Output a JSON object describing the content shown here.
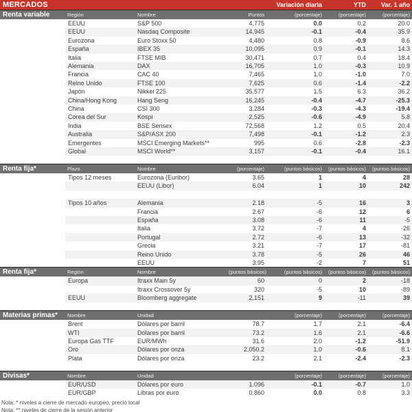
{
  "title_bar": {
    "title": "MERCADOS",
    "cols": [
      "Variación diaria",
      "YTD",
      "Var. 1 año"
    ]
  },
  "colors": {
    "red_bar": "#C8342A",
    "gray_header": "#6F6F6F",
    "negative_red": "#C00000",
    "positive_green": "#92D050",
    "row_stripe": "#F2F2F2"
  },
  "sections": [
    {
      "label": "Renta variable",
      "gap_before": false,
      "stripe": "even",
      "columns": [
        "Región",
        "Nombre",
        "Puntos",
        "(porcentaje)",
        "(porcentaje)",
        "(porcentaje)"
      ],
      "rows": [
        {
          "c1": "EEUU",
          "c2": "S&P 500",
          "val": "4,775",
          "chg": [
            "0.0",
            "0.2",
            "20.0"
          ],
          "sig": [
            "r",
            "g",
            "g"
          ]
        },
        {
          "c1": "EEUU",
          "c2": "Nasdaq Composite",
          "val": "14,945",
          "chg": [
            "-0.1",
            "-0.4",
            "35.9"
          ],
          "sig": [
            "r",
            "r",
            "g"
          ]
        },
        {
          "c1": "Eurozona",
          "c2": "Euro Stoxx 50",
          "val": "4,480",
          "chg": [
            "0.8",
            "-0.9",
            "8.6"
          ],
          "sig": [
            "g",
            "r",
            "g"
          ]
        },
        {
          "c1": "España",
          "c2": "IBEX 35",
          "val": "10,095",
          "chg": [
            "0.9",
            "-0.1",
            "14.3"
          ],
          "sig": [
            "g",
            "r",
            "g"
          ]
        },
        {
          "c1": "Italia",
          "c2": "FTSE MIB",
          "val": "30,471",
          "chg": [
            "0.7",
            "0.4",
            "18.4"
          ],
          "sig": [
            "g",
            "g",
            "g"
          ]
        },
        {
          "c1": "Alemania",
          "c2": "DAX",
          "val": "16,705",
          "chg": [
            "1.0",
            "-0.3",
            "10.9"
          ],
          "sig": [
            "g",
            "r",
            "g"
          ]
        },
        {
          "c1": "Francia",
          "c2": "CAC 40",
          "val": "7,465",
          "chg": [
            "1.0",
            "-1.0",
            "7.0"
          ],
          "sig": [
            "g",
            "r",
            "g"
          ]
        },
        {
          "c1": "Reino Unido",
          "c2": "FTSE 100",
          "val": "7,625",
          "chg": [
            "0.6",
            "-1.4",
            "-2.2"
          ],
          "sig": [
            "g",
            "r",
            "r"
          ]
        },
        {
          "c1": "Japón",
          "c2": "Nikkei 225",
          "val": "35,577",
          "chg": [
            "1.5",
            "6.3",
            "36.2"
          ],
          "sig": [
            "g",
            "g",
            "g"
          ]
        },
        {
          "c1": "China/Hong Kong",
          "c2": "Hang Seng",
          "val": "16,245",
          "chg": [
            "-0.4",
            "-4.7",
            "-25.3"
          ],
          "sig": [
            "r",
            "r",
            "r"
          ]
        },
        {
          "c1": "China",
          "c2": "CSI 300",
          "val": "3,284",
          "chg": [
            "-0.3",
            "-4.3",
            "-19.4"
          ],
          "sig": [
            "r",
            "r",
            "r"
          ]
        },
        {
          "c1": "Corea del Sur",
          "c2": "Kospi",
          "val": "2,525",
          "chg": [
            "-0.6",
            "-4.9",
            "5.8"
          ],
          "sig": [
            "r",
            "r",
            "g"
          ]
        },
        {
          "c1": "India",
          "c2": "BSE Sensex",
          "val": "72,568",
          "chg": [
            "1.2",
            "0.5",
            "20.4"
          ],
          "sig": [
            "g",
            "g",
            "g"
          ]
        },
        {
          "c1": "Australia",
          "c2": "S&P/ASX 200",
          "val": "7,498",
          "chg": [
            "-0.1",
            "-1.2",
            "2.3"
          ],
          "sig": [
            "r",
            "r",
            "g"
          ]
        },
        {
          "c1": "Emergentes",
          "c2": "MSCI Emerging Markets**",
          "val": "995",
          "chg": [
            "0.6",
            "-2.8",
            "-2.3"
          ],
          "sig": [
            "g",
            "r",
            "r"
          ]
        },
        {
          "c1": "Global",
          "c2": "MSCI World**",
          "val": "3,157",
          "chg": [
            "-0.1",
            "-0.4",
            "16.1"
          ],
          "sig": [
            "r",
            "r",
            "g"
          ]
        }
      ]
    },
    {
      "label": "Renta fija*",
      "gap_before": true,
      "stripe": "even",
      "columns": [
        "Plazo",
        "Nombre",
        "(porcentaje)",
        "(puntos básicos)",
        "(puntos básicos)",
        "(puntos básicos)"
      ],
      "rows": [
        {
          "c1": "Tipos 12 meses",
          "c2": "Eurozona (Euribor)",
          "val": "3.65",
          "chg": [
            "1",
            "4",
            "28"
          ],
          "sig": [
            "r",
            "r",
            "r"
          ]
        },
        {
          "c1": "",
          "c2": "EEUU (Libor)",
          "val": "6.04",
          "chg": [
            "1",
            "10",
            "242"
          ],
          "sig": [
            "r",
            "r",
            "r"
          ]
        },
        {
          "c1": "",
          "c2": "",
          "val": "",
          "chg": [
            "",
            "",
            ""
          ],
          "sig": [
            "",
            "",
            ""
          ]
        },
        {
          "c1": "Tipos 10 años",
          "c2": "Alemania",
          "val": "2.18",
          "chg": [
            "-5",
            "16",
            "3"
          ],
          "sig": [
            "g",
            "r",
            "r"
          ]
        },
        {
          "c1": "",
          "c2": "Francia",
          "val": "2.67",
          "chg": [
            "-6",
            "12",
            "6"
          ],
          "sig": [
            "g",
            "r",
            "r"
          ]
        },
        {
          "c1": "",
          "c2": "España",
          "val": "3.08",
          "chg": [
            "-6",
            "11",
            "-5"
          ],
          "sig": [
            "g",
            "r",
            "g"
          ]
        },
        {
          "c1": "",
          "c2": "Italia",
          "val": "3.72",
          "chg": [
            "-7",
            "4",
            "-26"
          ],
          "sig": [
            "g",
            "r",
            "g"
          ]
        },
        {
          "c1": "",
          "c2": "Portugal",
          "val": "2.72",
          "chg": [
            "-6",
            "13",
            "-32"
          ],
          "sig": [
            "g",
            "r",
            "g"
          ]
        },
        {
          "c1": "",
          "c2": "Grecia",
          "val": "3.21",
          "chg": [
            "-7",
            "17",
            "-81"
          ],
          "sig": [
            "g",
            "r",
            "g"
          ]
        },
        {
          "c1": "",
          "c2": "Reino Unido",
          "val": "3.78",
          "chg": [
            "-5",
            "26",
            "46"
          ],
          "sig": [
            "g",
            "r",
            "r"
          ]
        },
        {
          "c1": "",
          "c2": "EEUU",
          "val": "3.95",
          "chg": [
            "-2",
            "7",
            "51"
          ],
          "sig": [
            "g",
            "r",
            "r"
          ]
        }
      ]
    },
    {
      "label": "Renta fija*",
      "gap_before": false,
      "stripe": "odd",
      "columns": [
        "Región",
        "Nombre",
        "(puntos básicos)",
        "(puntos básicos)",
        "(puntos básicos)",
        "(puntos básicos)"
      ],
      "rows": [
        {
          "c1": "Europa",
          "c2": "Itraxx Main 5y",
          "val": "60",
          "chg": [
            "0",
            "2",
            "-18"
          ],
          "sig": [
            "g",
            "r",
            "g"
          ]
        },
        {
          "c1": "",
          "c2": "Itraxx Crossover 5y",
          "val": "320",
          "chg": [
            "-5",
            "10",
            "-89"
          ],
          "sig": [
            "g",
            "r",
            "g"
          ]
        },
        {
          "c1": "EEUU",
          "c2": "Bloomberg aggregate",
          "val": "2,151",
          "chg": [
            "9",
            "-11",
            "39"
          ],
          "sig": [
            "r",
            "g",
            "r"
          ]
        }
      ]
    },
    {
      "label": "Materias primas*",
      "gap_before": true,
      "stripe": "even",
      "columns": [
        "Nombre",
        "Unidad",
        "",
        "(porcentaje)",
        "(porcentaje)",
        "(porcentaje)"
      ],
      "rows": [
        {
          "c1": "Brent",
          "c2": "Dólares por barril",
          "val": "78.7",
          "chg": [
            "1.7",
            "2.1",
            "-6.4"
          ],
          "sig": [
            "g",
            "g",
            "r"
          ]
        },
        {
          "c1": "WTI",
          "c2": "Dólares por barril",
          "val": "73.2",
          "chg": [
            "1.6",
            "2.1",
            "-6.6"
          ],
          "sig": [
            "g",
            "g",
            "r"
          ]
        },
        {
          "c1": "Europa Gas TTF",
          "c2": "EUR/MWh",
          "val": "31.6",
          "chg": [
            "2.0",
            "-1.2",
            "-51.9"
          ],
          "sig": [
            "g",
            "r",
            "r"
          ]
        },
        {
          "c1": "Oro",
          "c2": "Dólares por onza",
          "val": "2,050.2",
          "chg": [
            "1.0",
            "-0.6",
            "8.1"
          ],
          "sig": [
            "g",
            "r",
            "g"
          ]
        },
        {
          "c1": "Plata",
          "c2": "Dólares por onza",
          "val": "23.2",
          "chg": [
            "2.1",
            "-2.4",
            "-2.3"
          ],
          "sig": [
            "g",
            "r",
            "r"
          ]
        }
      ]
    },
    {
      "label": "Divisas*",
      "gap_before": true,
      "stripe": "odd",
      "columns": [
        "Nombre",
        "Unidad",
        "",
        "(porcentaje)",
        "(porcentaje)",
        "(porcentaje)"
      ],
      "rows": [
        {
          "c1": "EUR/USD",
          "c2": "Dólares por euro",
          "val": "1.096",
          "chg": [
            "-0.1",
            "-0.7",
            "1.0"
          ],
          "sig": [
            "r",
            "r",
            "g"
          ]
        },
        {
          "c1": "EUR/GBP",
          "c2": "Libras por euro",
          "val": "0.860",
          "chg": [
            "0.0",
            "0.8",
            "3.3"
          ],
          "sig": [
            "r",
            "g",
            "g"
          ]
        }
      ]
    }
  ],
  "footnotes": [
    "Nota: * niveles a cierre de mercado europeo, precio local",
    "Nota: ** niveles de cierre de la sesión anterior"
  ]
}
